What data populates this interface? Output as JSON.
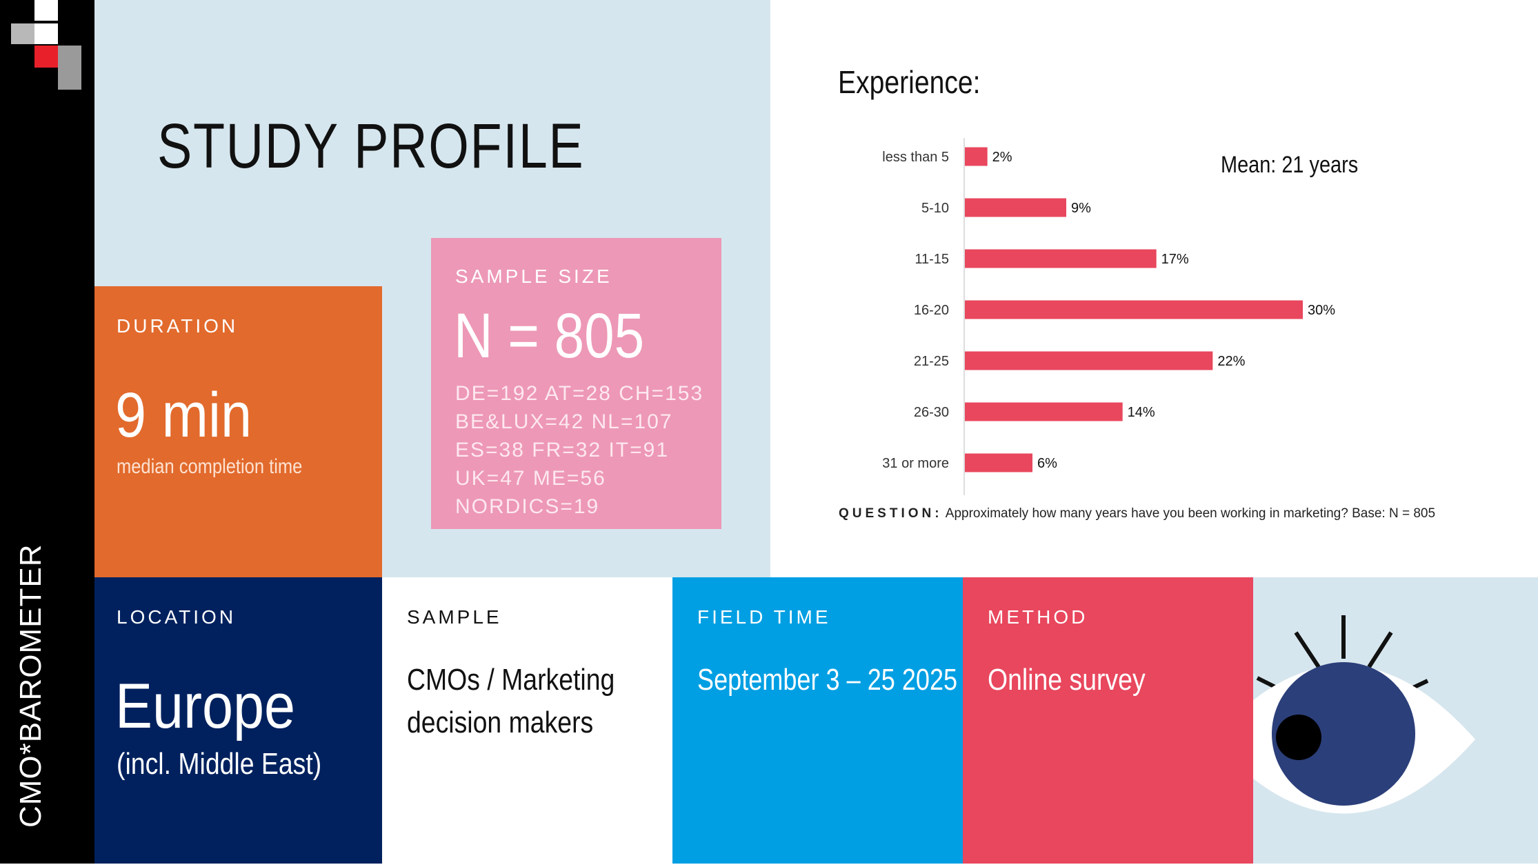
{
  "sidebar": {
    "brand": "CMO*BAROMETER"
  },
  "title": "STUDY PROFILE",
  "duration": {
    "label": "DURATION",
    "value": "9 min",
    "note": "median completion time"
  },
  "sample_size": {
    "label": "SAMPLE SIZE",
    "value": "N = 805",
    "breakdown": [
      "DE=192 AT=28 CH=153",
      "BE&LUX=42 NL=107",
      "ES=38 FR=32 IT=91",
      "UK=47 ME=56",
      "NORDICS=19"
    ]
  },
  "location": {
    "label": "LOCATION",
    "value": "Europe",
    "note": "(incl. Middle East)"
  },
  "sample": {
    "label": "SAMPLE",
    "line1": "CMOs / Marketing",
    "line2": "decision makers"
  },
  "field_time": {
    "label": "FIELD TIME",
    "value": "September 3 – 25 2025"
  },
  "method": {
    "label": "METHOD",
    "value": "Online survey"
  },
  "question": {
    "label": "QUESTION:",
    "text": "Approximately how many years have you been working in marketing?  Base: N = 805"
  },
  "colors": {
    "bar": "#e8475d",
    "orange": "#e26a2c",
    "pink": "#ed98b6",
    "navy": "#00215e",
    "blue": "#009fe3",
    "red": "#e8475d",
    "eye_iris": "#2b3f7a"
  },
  "icons": [
    "logo-squares-icon",
    "eye-icon"
  ],
  "chart_data": {
    "type": "bar",
    "orientation": "horizontal",
    "title": "Experience:",
    "annotation": "Mean: 21 years",
    "categories": [
      "less than 5",
      "5-10",
      "11-15",
      "16-20",
      "21-25",
      "26-30",
      "31 or more"
    ],
    "values": [
      2,
      9,
      17,
      30,
      22,
      14,
      6
    ],
    "value_labels": [
      "2%",
      "9%",
      "17%",
      "30%",
      "22%",
      "14%",
      "6%"
    ],
    "xlim": [
      0,
      30
    ],
    "grid": false
  }
}
